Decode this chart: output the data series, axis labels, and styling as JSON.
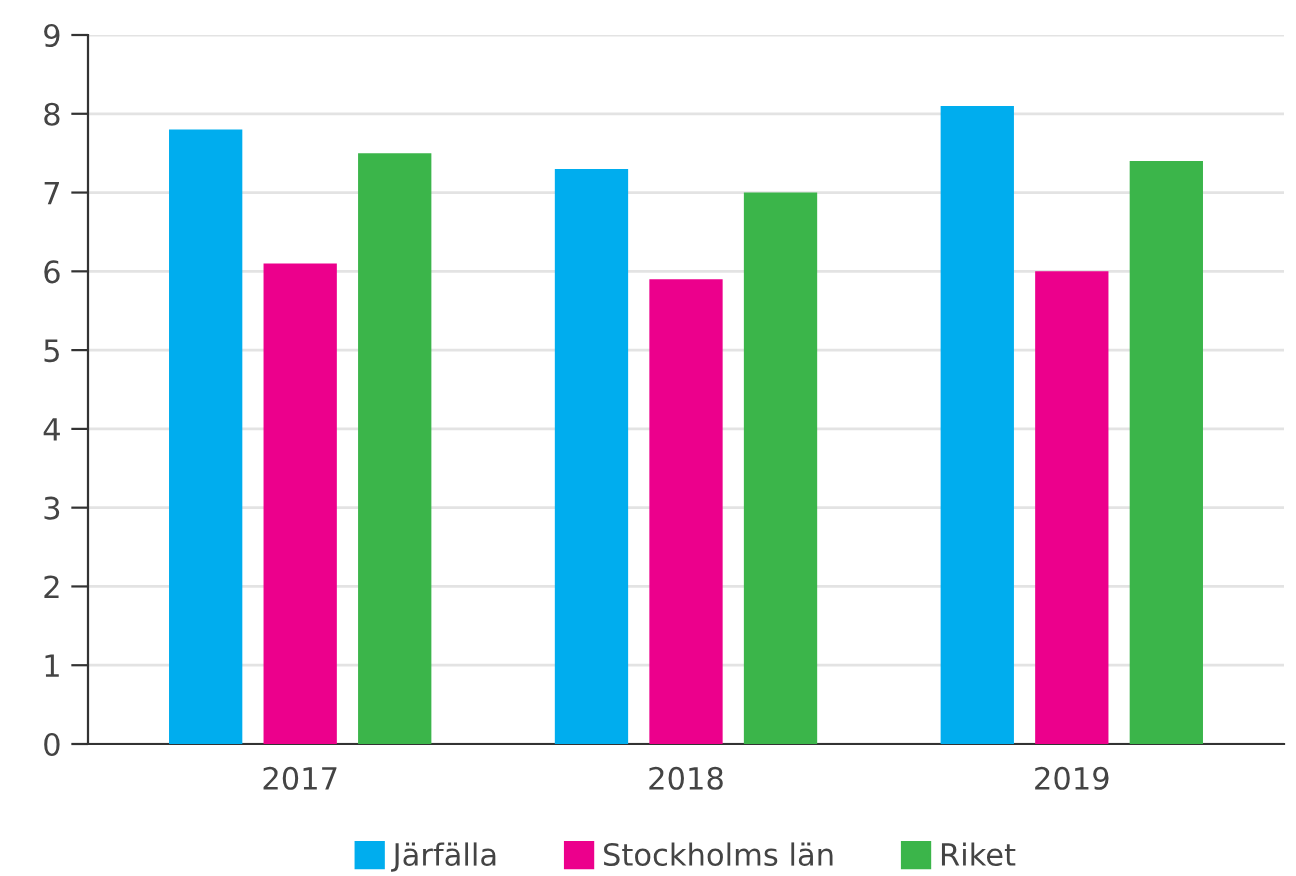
{
  "chart_data": {
    "type": "bar",
    "categories": [
      "2017",
      "2018",
      "2019"
    ],
    "series": [
      {
        "name": "Järfälla",
        "color": "#00adee",
        "values": [
          7.8,
          7.3,
          8.1
        ]
      },
      {
        "name": "Stockholms län",
        "color": "#ec008c",
        "values": [
          6.1,
          5.9,
          6.0
        ]
      },
      {
        "name": "Riket",
        "color": "#3bb54a",
        "values": [
          7.5,
          7.0,
          7.4
        ]
      }
    ],
    "ylim": [
      0,
      9
    ],
    "yticks": [
      0,
      1,
      2,
      3,
      4,
      5,
      6,
      7,
      8,
      9
    ],
    "grid": "y",
    "legend": "bottom"
  }
}
